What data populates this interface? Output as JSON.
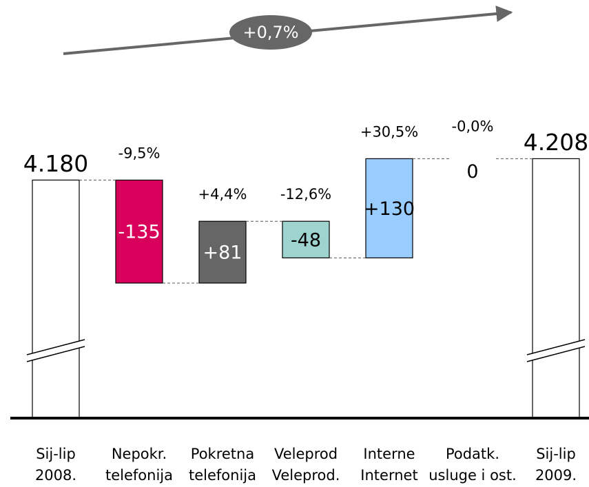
{
  "chart_data": {
    "type": "waterfall",
    "trend_label": "+0,7%",
    "categories": [
      "Sij-lip 2008.",
      "Nepokr. telefonija",
      "Pokretna telefonija",
      "Veleprod.",
      "Internet",
      "Podatk. usluge i ost.",
      "Sij-lip 2009."
    ],
    "measure": [
      "absolute",
      "relative",
      "relative",
      "relative",
      "relative",
      "relative",
      "total"
    ],
    "values": [
      4180,
      -135,
      81,
      -48,
      130,
      0,
      4208
    ],
    "value_labels": [
      "4.180",
      "-135",
      "+81",
      "-48",
      "+130",
      "0",
      "4.208"
    ],
    "change_labels": [
      null,
      "-9,5%",
      "+4,4%",
      "-12,6%",
      "+30,5%",
      "-0,0%",
      null
    ],
    "colors": [
      "#ffffff",
      "#d9005b",
      "#666666",
      "#9fd3cf",
      "#99ccff",
      "#ffffff",
      "#ffffff"
    ],
    "ylim": [
      3868,
      4416
    ],
    "axis_break": true
  }
}
